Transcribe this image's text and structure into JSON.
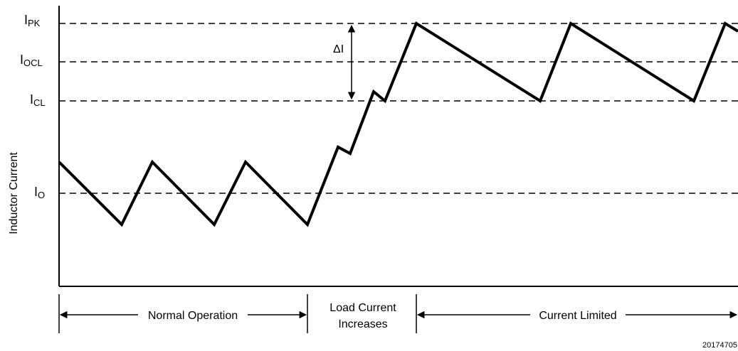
{
  "y_axis_label": "Inductor Current",
  "levels": {
    "ipk": {
      "main": "I",
      "sub": "PK"
    },
    "iocl": {
      "main": "I",
      "sub": "OCL"
    },
    "icl": {
      "main": "I",
      "sub": "CL"
    },
    "io": {
      "main": "I",
      "sub": "O"
    }
  },
  "delta_label": "ΔI",
  "phases": {
    "normal": "Normal Operation",
    "load_line1": "Load Current",
    "load_line2": "Increases",
    "limited": "Current Limited"
  },
  "figure_id": "20174705"
}
